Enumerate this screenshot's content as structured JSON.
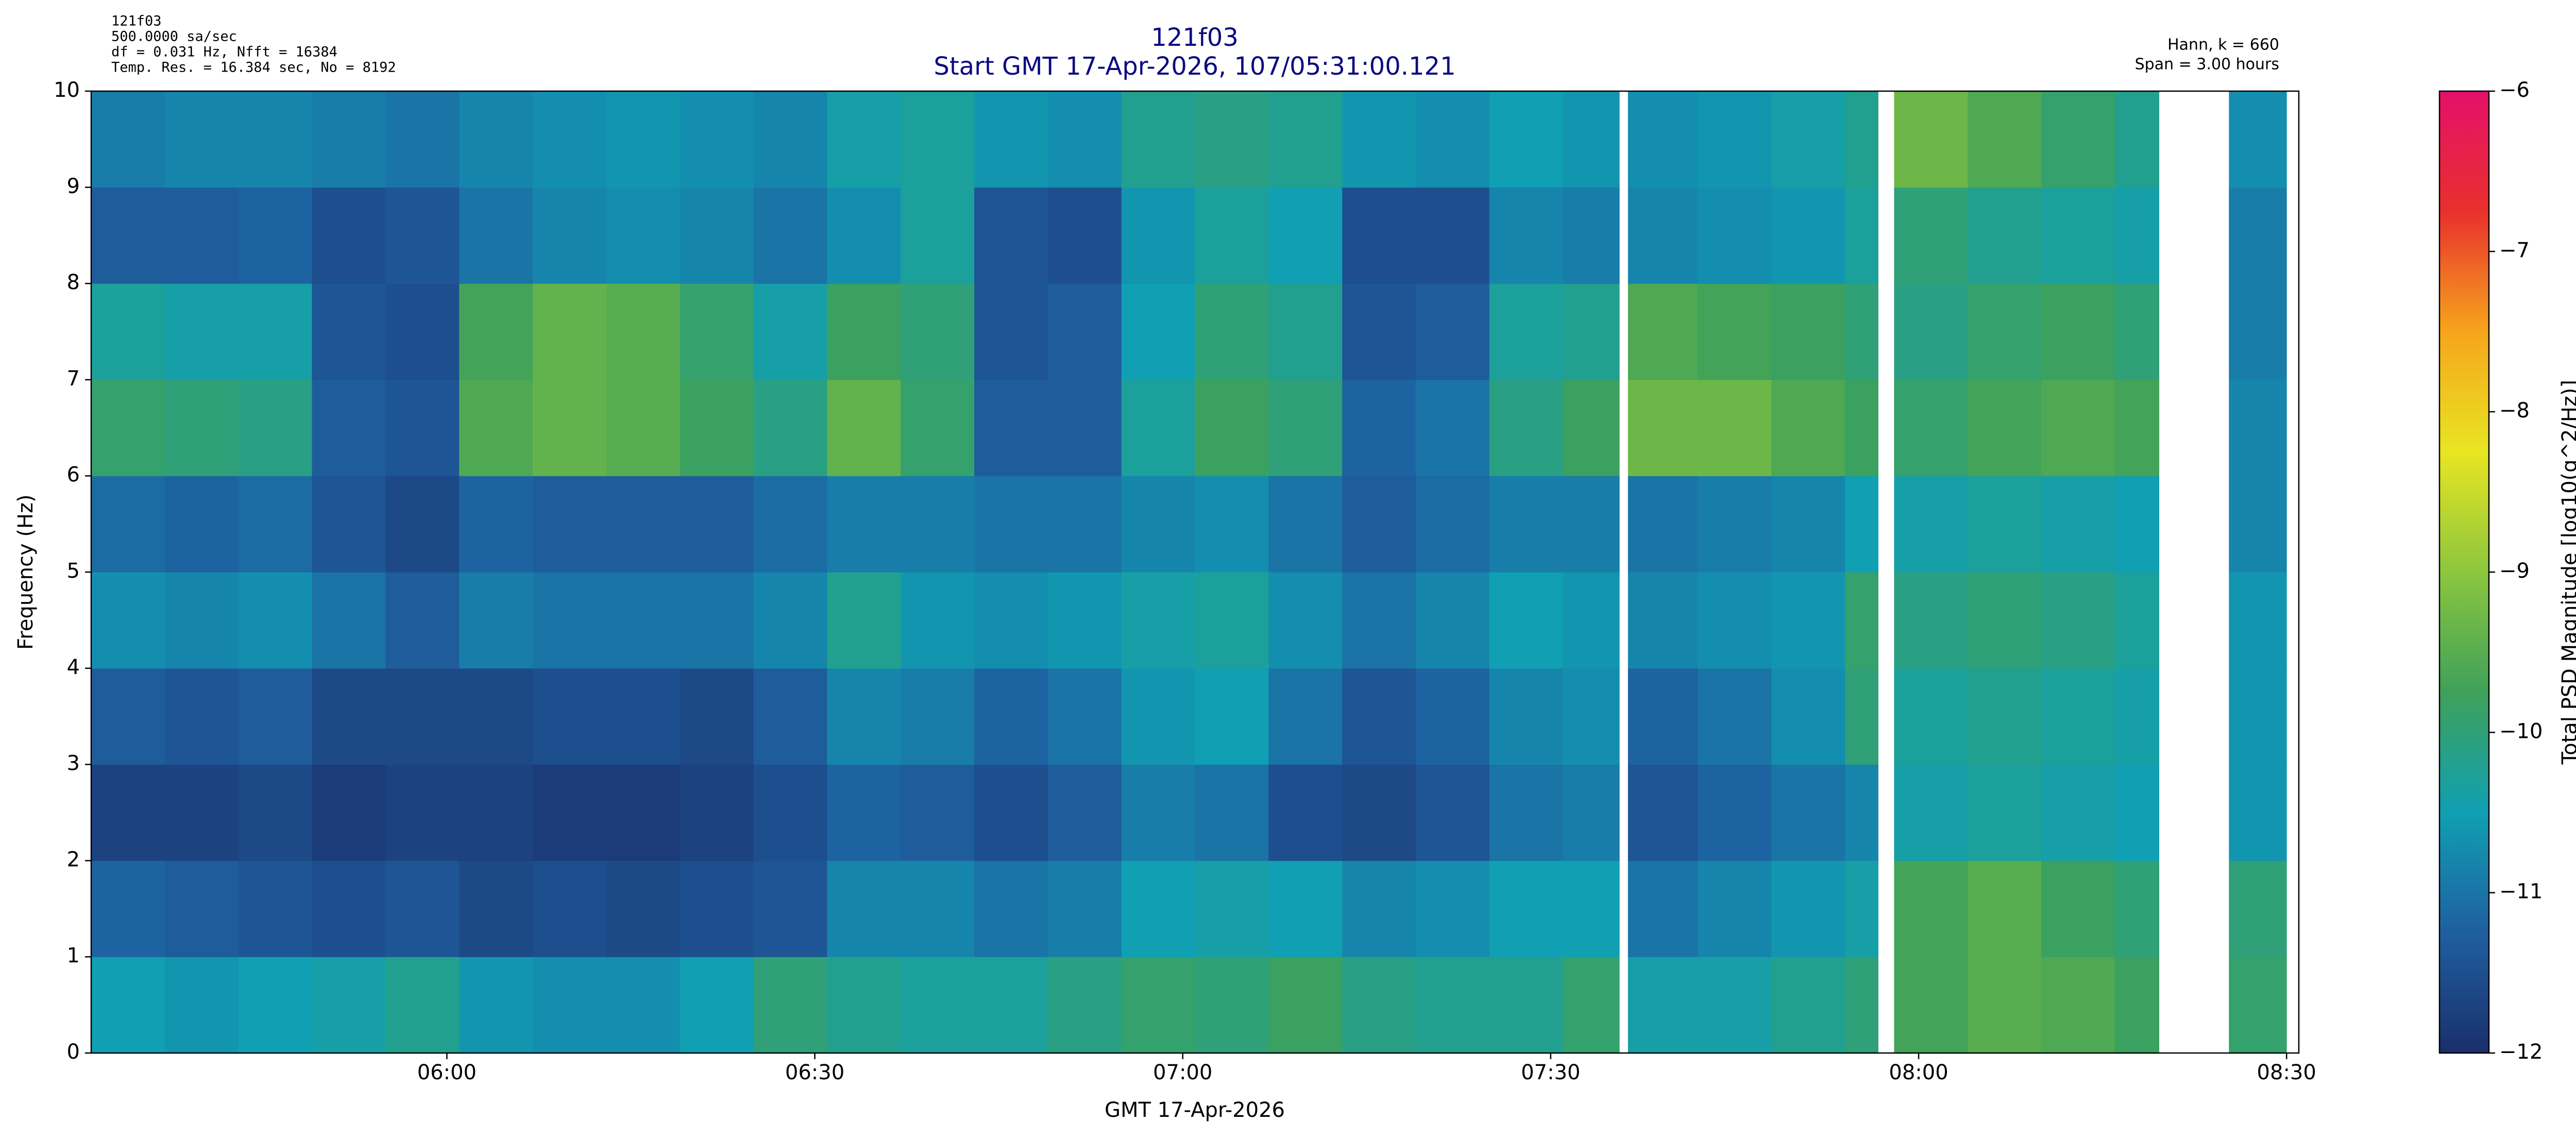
{
  "chart_data": {
    "type": "heatmap",
    "header_left": [
      "121f03",
      "500.0000 sa/sec",
      "df = 0.031 Hz,  Nfft = 16384",
      "Temp. Res. = 16.384 sec, No = 8192"
    ],
    "title": "121f03",
    "subtitle": "Start GMT 17-Apr-2026, 107/05:31:00.121",
    "header_right": [
      "Hann, k = 660",
      "Span = 3.00 hours"
    ],
    "xlabel": "GMT 17-Apr-2026",
    "ylabel": "Frequency (Hz)",
    "colorbar_label": "Total PSD Magnitude [log10(g^2/Hz)]",
    "xlim": [
      331,
      511
    ],
    "xticks": [
      {
        "value": 360,
        "label": "06:00"
      },
      {
        "value": 390,
        "label": "06:30"
      },
      {
        "value": 420,
        "label": "07:00"
      },
      {
        "value": 450,
        "label": "07:30"
      },
      {
        "value": 480,
        "label": "08:00"
      },
      {
        "value": 510,
        "label": "08:30"
      }
    ],
    "ylim": [
      0,
      10
    ],
    "yticks": [
      0,
      1,
      2,
      3,
      4,
      5,
      6,
      7,
      8,
      9,
      10
    ],
    "clim": [
      -12,
      -6
    ],
    "cticks": [
      {
        "value": -12,
        "label": "−12"
      },
      {
        "value": -11,
        "label": "−11"
      },
      {
        "value": -10,
        "label": "−10"
      },
      {
        "value": -9,
        "label": "−9"
      },
      {
        "value": -8,
        "label": "−8"
      },
      {
        "value": -7,
        "label": "−7"
      },
      {
        "value": -6,
        "label": "−6"
      }
    ],
    "colormap": [
      "#1a2f6b",
      "#1f5fa0",
      "#109fb3",
      "#3ea15a",
      "#8cc63e",
      "#e8e522",
      "#f6a51c",
      "#e8302c",
      "#e4106a"
    ],
    "x_edges": [
      331,
      337,
      343,
      349,
      355,
      361,
      367,
      373,
      379,
      385,
      391,
      397,
      403,
      409,
      415,
      421,
      427,
      433,
      439,
      445,
      451,
      455.6,
      456.3,
      462,
      468,
      474,
      476.7,
      478,
      484,
      490,
      496,
      499.6,
      505.3,
      510
    ],
    "y_edges": [
      0,
      1,
      2,
      3,
      4,
      5,
      6,
      7,
      8,
      9,
      10
    ],
    "values": [
      [
        -10.5,
        -10.6,
        -10.5,
        -10.4,
        -10.2,
        -10.6,
        -10.7,
        -10.7,
        -10.5,
        -10.0,
        -10.2,
        -10.3,
        -10.3,
        -10.1,
        -9.9,
        -10.0,
        -9.8,
        -10.1,
        -10.2,
        -10.2,
        -9.9,
        null,
        -10.4,
        -10.4,
        -10.2,
        -10.0,
        null,
        -9.7,
        -9.5,
        -9.6,
        -9.8,
        null,
        -9.9
      ],
      [
        -11.2,
        -11.3,
        -11.4,
        -11.5,
        -11.4,
        -11.6,
        -11.5,
        -11.6,
        -11.5,
        -11.4,
        -10.8,
        -10.8,
        -11.0,
        -10.9,
        -10.5,
        -10.4,
        -10.5,
        -10.8,
        -10.7,
        -10.5,
        -10.5,
        null,
        -11.0,
        -10.8,
        -10.6,
        -10.4,
        null,
        -9.7,
        -9.5,
        -9.8,
        -10.0,
        null,
        -10.0
      ],
      [
        -11.7,
        -11.7,
        -11.6,
        -11.8,
        -11.7,
        -11.7,
        -11.8,
        -11.8,
        -11.7,
        -11.5,
        -11.2,
        -11.3,
        -11.5,
        -11.3,
        -10.9,
        -11.0,
        -11.5,
        -11.6,
        -11.4,
        -11.0,
        -10.9,
        null,
        -11.4,
        -11.2,
        -11.0,
        -10.8,
        null,
        -10.4,
        -10.3,
        -10.4,
        -10.5,
        null,
        -10.6
      ],
      [
        -11.3,
        -11.4,
        -11.3,
        -11.6,
        -11.6,
        -11.6,
        -11.5,
        -11.5,
        -11.6,
        -11.3,
        -10.8,
        -10.9,
        -11.2,
        -11.0,
        -10.6,
        -10.5,
        -11.0,
        -11.4,
        -11.2,
        -10.8,
        -10.7,
        null,
        -11.2,
        -11.0,
        -10.7,
        -10.0,
        null,
        -10.3,
        -10.2,
        -10.3,
        -10.4,
        null,
        -10.6
      ],
      [
        -10.7,
        -10.8,
        -10.7,
        -11.0,
        -11.3,
        -10.9,
        -11.0,
        -11.0,
        -11.0,
        -10.8,
        -10.2,
        -10.6,
        -10.7,
        -10.6,
        -10.4,
        -10.3,
        -10.7,
        -11.0,
        -10.8,
        -10.5,
        -10.6,
        null,
        -10.8,
        -10.7,
        -10.6,
        -9.9,
        null,
        -10.1,
        -10.0,
        -10.1,
        -10.3,
        null,
        -10.6
      ],
      [
        -11.1,
        -11.2,
        -11.1,
        -11.4,
        -11.6,
        -11.2,
        -11.3,
        -11.3,
        -11.3,
        -11.1,
        -10.9,
        -10.9,
        -11.0,
        -11.0,
        -10.8,
        -10.7,
        -11.0,
        -11.3,
        -11.1,
        -10.9,
        -10.9,
        null,
        -11.0,
        -10.9,
        -10.8,
        -10.5,
        null,
        -10.4,
        -10.3,
        -10.4,
        -10.5,
        null,
        -10.8
      ],
      [
        -9.9,
        -10.0,
        -10.1,
        -11.3,
        -11.4,
        -9.6,
        -9.4,
        -9.5,
        -9.8,
        -10.1,
        -9.4,
        -9.9,
        -11.3,
        -11.3,
        -10.3,
        -9.8,
        -10.0,
        -11.2,
        -11.0,
        -10.1,
        -9.8,
        null,
        -9.3,
        -9.3,
        -9.6,
        -9.8,
        null,
        -9.9,
        -9.7,
        -9.6,
        -9.7,
        null,
        -10.8
      ],
      [
        -10.3,
        -10.4,
        -10.4,
        -11.4,
        -11.5,
        -9.7,
        -9.4,
        -9.5,
        -9.9,
        -10.4,
        -9.8,
        -10.0,
        -11.4,
        -11.3,
        -10.5,
        -10.0,
        -10.2,
        -11.4,
        -11.3,
        -10.3,
        -10.2,
        null,
        -9.6,
        -9.7,
        -9.8,
        -10.0,
        null,
        -10.1,
        -9.9,
        -9.8,
        -10.0,
        null,
        -10.9
      ],
      [
        -11.3,
        -11.3,
        -11.2,
        -11.5,
        -11.4,
        -11.0,
        -10.8,
        -10.7,
        -10.8,
        -11.0,
        -10.7,
        -10.3,
        -11.4,
        -11.5,
        -10.6,
        -10.3,
        -10.5,
        -11.5,
        -11.5,
        -10.8,
        -10.9,
        null,
        -10.8,
        -10.7,
        -10.6,
        -10.3,
        null,
        -10.0,
        -10.2,
        -10.3,
        -10.4,
        null,
        -10.9
      ],
      [
        -10.9,
        -10.8,
        -10.8,
        -10.9,
        -11.0,
        -10.8,
        -10.7,
        -10.6,
        -10.7,
        -10.8,
        -10.4,
        -10.3,
        -10.6,
        -10.7,
        -10.2,
        -10.1,
        -10.2,
        -10.6,
        -10.7,
        -10.5,
        -10.6,
        null,
        -10.7,
        -10.6,
        -10.4,
        -10.2,
        null,
        -9.3,
        -9.6,
        -9.9,
        -10.2,
        null,
        -10.7
      ]
    ]
  }
}
